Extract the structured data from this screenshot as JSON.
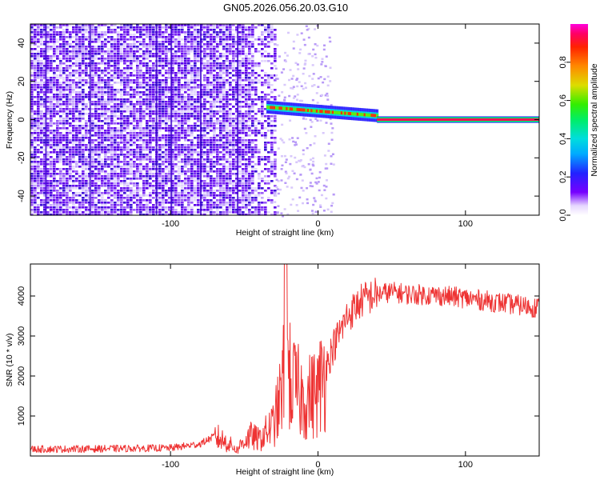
{
  "title": "GN05.2026.056.20.03.G10",
  "spectrogram": {
    "type": "heatmap",
    "xlabel": "Height of straight line (km)",
    "ylabel": "Frequency (Hz)",
    "xlim": [
      -195,
      150
    ],
    "ylim": [
      -50,
      50
    ],
    "xticks": [
      -100,
      0,
      100
    ],
    "yticks": [
      -40,
      -20,
      0,
      20,
      40
    ],
    "noise_region_end_km": -30,
    "signal_onset_km": -35,
    "steady_tone_start_km": 40,
    "steady_tone_freq_hz": 0,
    "colorbar": {
      "label": "Normalized spectral amplitude",
      "range": [
        0.0,
        1.0
      ],
      "ticks": [
        0.0,
        0.2,
        0.4,
        0.6,
        0.8
      ],
      "tick_labels": [
        "0.0",
        "0.2",
        "0.4",
        "0.6",
        "0.8"
      ]
    },
    "color": "#5500ee"
  },
  "snr": {
    "type": "line",
    "xlabel": "Height of straight line (km)",
    "ylabel": "SNR (10 * v/v)",
    "xlim": [
      -195,
      150
    ],
    "ylim": [
      0,
      4800
    ],
    "xticks": [
      -100,
      0,
      100
    ],
    "yticks": [
      1000,
      2000,
      3000,
      4000
    ],
    "color": "#ee3333",
    "profile_x": [
      -195,
      -150,
      -100,
      -80,
      -70,
      -60,
      -55,
      -50,
      -45,
      -40,
      -35,
      -30,
      -25,
      -22,
      -20,
      -18,
      -15,
      -10,
      -5,
      0,
      5,
      10,
      15,
      20,
      30,
      40,
      50,
      60,
      80,
      100,
      120,
      140,
      150
    ],
    "profile_y": [
      170,
      180,
      200,
      300,
      500,
      300,
      150,
      400,
      500,
      400,
      600,
      800,
      1500,
      2500,
      2100,
      1800,
      1700,
      1400,
      1500,
      1600,
      2200,
      2700,
      3100,
      3500,
      3900,
      4050,
      4100,
      4050,
      4020,
      3950,
      3850,
      3750,
      3700
    ]
  }
}
